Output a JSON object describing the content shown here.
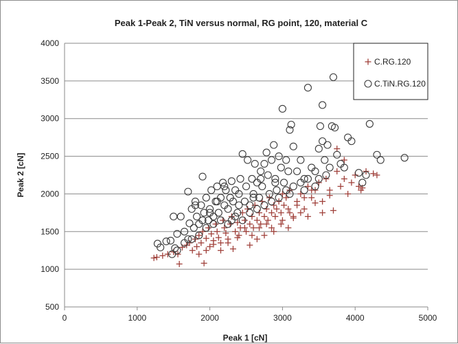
{
  "chart_data": {
    "type": "scatter",
    "title": "Peak 1-Peak 2, TiN versus normal, RG point,  120, material C",
    "xlabel": "Peak 1 [cN]",
    "ylabel": "Peak 2 [cN]",
    "xlim": [
      0,
      5000
    ],
    "ylim": [
      500,
      4000
    ],
    "x_ticks": [
      "0",
      "1000",
      "2000",
      "3000",
      "4000",
      "5000"
    ],
    "y_ticks": [
      "500",
      "1000",
      "1500",
      "2000",
      "2500",
      "3000",
      "3500",
      "4000"
    ],
    "grid": "horizontal",
    "legend_position": "top-right",
    "series": [
      {
        "name": "C.RG.120",
        "marker": "plus",
        "color": "#a0413b",
        "points": [
          [
            1230,
            1150
          ],
          [
            1270,
            1160
          ],
          [
            1350,
            1180
          ],
          [
            1420,
            1200
          ],
          [
            1500,
            1230
          ],
          [
            1560,
            1200
          ],
          [
            1580,
            1070
          ],
          [
            1620,
            1290
          ],
          [
            1680,
            1320
          ],
          [
            1720,
            1350
          ],
          [
            1760,
            1250
          ],
          [
            1800,
            1400
          ],
          [
            1820,
            1300
          ],
          [
            1850,
            1450
          ],
          [
            1880,
            1350
          ],
          [
            1900,
            1500
          ],
          [
            1920,
            1080
          ],
          [
            1950,
            1410
          ],
          [
            1980,
            1550
          ],
          [
            2000,
            1300
          ],
          [
            2020,
            1470
          ],
          [
            2050,
            1380
          ],
          [
            2080,
            1600
          ],
          [
            2100,
            1500
          ],
          [
            2120,
            1420
          ],
          [
            2150,
            1350
          ],
          [
            2180,
            1650
          ],
          [
            2200,
            1550
          ],
          [
            2220,
            1480
          ],
          [
            2250,
            1400
          ],
          [
            2280,
            1600
          ],
          [
            2300,
            1700
          ],
          [
            2320,
            1270
          ],
          [
            2350,
            1500
          ],
          [
            2380,
            1620
          ],
          [
            2400,
            1450
          ],
          [
            2420,
            1550
          ],
          [
            2450,
            1750
          ],
          [
            2480,
            1650
          ],
          [
            2500,
            1500
          ],
          [
            2520,
            1800
          ],
          [
            2550,
            1600
          ],
          [
            2580,
            1700
          ],
          [
            2600,
            1550
          ],
          [
            2620,
            1850
          ],
          [
            2650,
            1650
          ],
          [
            2680,
            1750
          ],
          [
            2700,
            1600
          ],
          [
            2720,
            1900
          ],
          [
            2750,
            1700
          ],
          [
            2780,
            1800
          ],
          [
            2800,
            1650
          ],
          [
            2820,
            1950
          ],
          [
            2850,
            1750
          ],
          [
            2880,
            1850
          ],
          [
            2900,
            1700
          ],
          [
            2920,
            1800
          ],
          [
            2950,
            1900
          ],
          [
            2980,
            1750
          ],
          [
            3000,
            2000
          ],
          [
            3020,
            1850
          ],
          [
            3050,
            1950
          ],
          [
            3080,
            1800
          ],
          [
            3100,
            2050
          ],
          [
            3150,
            1700
          ],
          [
            3200,
            1900
          ],
          [
            3250,
            2000
          ],
          [
            3300,
            1800
          ],
          [
            3350,
            2100
          ],
          [
            3400,
            1950
          ],
          [
            3450,
            2050
          ],
          [
            3500,
            2150
          ],
          [
            3550,
            1900
          ],
          [
            3600,
            2200
          ],
          [
            3650,
            2050
          ],
          [
            3700,
            1780
          ],
          [
            3750,
            2300
          ],
          [
            3800,
            2100
          ],
          [
            3850,
            2200
          ],
          [
            3900,
            2000
          ],
          [
            3950,
            2150
          ],
          [
            4000,
            2250
          ],
          [
            4050,
            2100
          ],
          [
            4080,
            2050
          ],
          [
            4100,
            2080
          ],
          [
            4150,
            2300
          ],
          [
            4250,
            2270
          ],
          [
            4300,
            2250
          ],
          [
            2150,
            1250
          ],
          [
            2250,
            1350
          ],
          [
            2380,
            1420
          ],
          [
            2480,
            1550
          ],
          [
            2580,
            1450
          ],
          [
            2680,
            1550
          ],
          [
            2780,
            1600
          ],
          [
            2880,
            1500
          ],
          [
            2980,
            1600
          ],
          [
            3080,
            1550
          ],
          [
            3150,
            1680
          ],
          [
            3250,
            1750
          ],
          [
            3350,
            1700
          ],
          [
            3450,
            1880
          ],
          [
            3550,
            1750
          ],
          [
            3650,
            1980
          ],
          [
            3750,
            2600
          ],
          [
            3850,
            2450
          ],
          [
            1850,
            1200
          ],
          [
            1950,
            1250
          ],
          [
            2050,
            1330
          ],
          [
            2550,
            1320
          ],
          [
            2650,
            1400
          ],
          [
            2750,
            1450
          ],
          [
            2850,
            1550
          ],
          [
            3000,
            1650
          ],
          [
            3100,
            1750
          ],
          [
            3200,
            1850
          ],
          [
            3300,
            1950
          ],
          [
            3400,
            2050
          ]
        ]
      },
      {
        "name": "C.TiN.RG.120",
        "marker": "circle",
        "color": "#3a3a3a",
        "points": [
          [
            1280,
            1340
          ],
          [
            1320,
            1290
          ],
          [
            1400,
            1370
          ],
          [
            1460,
            1380
          ],
          [
            1500,
            1700
          ],
          [
            1520,
            1280
          ],
          [
            1550,
            1470
          ],
          [
            1600,
            1700
          ],
          [
            1650,
            1500
          ],
          [
            1700,
            2030
          ],
          [
            1720,
            1610
          ],
          [
            1750,
            1800
          ],
          [
            1780,
            1550
          ],
          [
            1800,
            1900
          ],
          [
            1820,
            1700
          ],
          [
            1850,
            1600
          ],
          [
            1880,
            1850
          ],
          [
            1900,
            2230
          ],
          [
            1920,
            1750
          ],
          [
            1950,
            1950
          ],
          [
            1980,
            1650
          ],
          [
            2000,
            1800
          ],
          [
            2020,
            2050
          ],
          [
            2050,
            1700
          ],
          [
            2080,
            1900
          ],
          [
            2100,
            2100
          ],
          [
            2120,
            1750
          ],
          [
            2150,
            1950
          ],
          [
            2180,
            2150
          ],
          [
            2200,
            1850
          ],
          [
            2220,
            2050
          ],
          [
            2250,
            1800
          ],
          [
            2280,
            1950
          ],
          [
            2300,
            2170
          ],
          [
            2320,
            1900
          ],
          [
            2350,
            2050
          ],
          [
            2380,
            1750
          ],
          [
            2400,
            2000
          ],
          [
            2420,
            2200
          ],
          [
            2450,
            2530
          ],
          [
            2480,
            1900
          ],
          [
            2500,
            2100
          ],
          [
            2520,
            2450
          ],
          [
            2550,
            1850
          ],
          [
            2580,
            2200
          ],
          [
            2600,
            2000
          ],
          [
            2620,
            2400
          ],
          [
            2650,
            2150
          ],
          [
            2680,
            1950
          ],
          [
            2700,
            2300
          ],
          [
            2720,
            2100
          ],
          [
            2750,
            2400
          ],
          [
            2780,
            2550
          ],
          [
            2800,
            2250
          ],
          [
            2820,
            2000
          ],
          [
            2850,
            2450
          ],
          [
            2880,
            2650
          ],
          [
            2900,
            2200
          ],
          [
            2920,
            2050
          ],
          [
            2950,
            2500
          ],
          [
            2980,
            2350
          ],
          [
            3000,
            3130
          ],
          [
            3020,
            2150
          ],
          [
            3050,
            2450
          ],
          [
            3080,
            2300
          ],
          [
            3100,
            2850
          ],
          [
            3120,
            2920
          ],
          [
            3150,
            2630
          ],
          [
            3200,
            2300
          ],
          [
            3250,
            2450
          ],
          [
            3300,
            2200
          ],
          [
            3350,
            3410
          ],
          [
            3400,
            2350
          ],
          [
            3450,
            2100
          ],
          [
            3500,
            2200
          ],
          [
            3520,
            2900
          ],
          [
            3550,
            3180
          ],
          [
            3580,
            2450
          ],
          [
            3600,
            2250
          ],
          [
            3620,
            2650
          ],
          [
            3650,
            2350
          ],
          [
            3680,
            2900
          ],
          [
            3700,
            3550
          ],
          [
            3720,
            2880
          ],
          [
            3750,
            2520
          ],
          [
            3800,
            2400
          ],
          [
            3850,
            2350
          ],
          [
            3900,
            2750
          ],
          [
            3950,
            2700
          ],
          [
            4050,
            2280
          ],
          [
            4100,
            2150
          ],
          [
            4200,
            2930
          ],
          [
            4300,
            2520
          ],
          [
            4350,
            2450
          ],
          [
            4550,
            3310
          ],
          [
            4680,
            2480
          ],
          [
            1480,
            1200
          ],
          [
            1550,
            1250
          ],
          [
            1650,
            1350
          ],
          [
            1750,
            1400
          ],
          [
            1850,
            1450
          ],
          [
            1950,
            1550
          ],
          [
            2050,
            1600
          ],
          [
            2150,
            1650
          ],
          [
            2250,
            1600
          ],
          [
            2350,
            1700
          ],
          [
            2450,
            1650
          ],
          [
            2550,
            1750
          ],
          [
            2650,
            1800
          ],
          [
            2750,
            1850
          ],
          [
            2850,
            1900
          ],
          [
            2950,
            1950
          ],
          [
            3050,
            2050
          ],
          [
            3150,
            2100
          ],
          [
            3250,
            2150
          ],
          [
            3350,
            2200
          ],
          [
            3450,
            2300
          ],
          [
            1700,
            1400
          ],
          [
            1800,
            1850
          ],
          [
            2000,
            1750
          ],
          [
            2200,
            2100
          ],
          [
            2400,
            1850
          ],
          [
            2600,
            1950
          ],
          [
            2700,
            2200
          ],
          [
            2900,
            2150
          ],
          [
            3100,
            2000
          ],
          [
            3300,
            2050
          ],
          [
            3500,
            2600
          ],
          [
            3550,
            2700
          ],
          [
            4150,
            2250
          ],
          [
            1900,
            1650
          ],
          [
            2100,
            1900
          ],
          [
            2300,
            1650
          ]
        ]
      }
    ]
  }
}
